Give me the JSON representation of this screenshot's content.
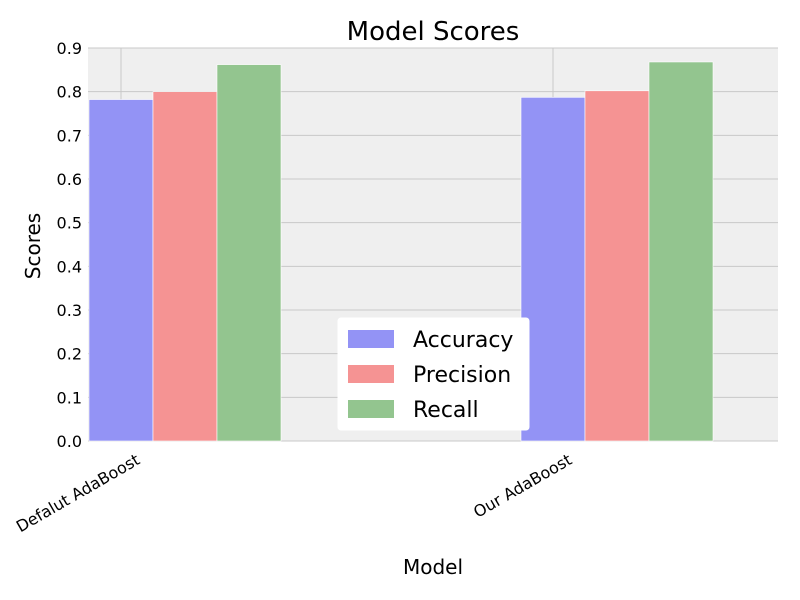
{
  "chart_data": {
    "type": "bar",
    "title": "Model Scores",
    "xlabel": "Model",
    "ylabel": "Scores",
    "categories": [
      "Defalut AdaBoost",
      "Our AdaBoost"
    ],
    "series": [
      {
        "name": "Accuracy",
        "values": [
          0.782,
          0.787
        ],
        "color": "#9393f5"
      },
      {
        "name": "Precision",
        "values": [
          0.8,
          0.802
        ],
        "color": "#f59393"
      },
      {
        "name": "Recall",
        "values": [
          0.862,
          0.868
        ],
        "color": "#93c58f"
      }
    ],
    "ylim": [
      0.0,
      0.9
    ],
    "yticks": [
      "0.0",
      "0.1",
      "0.2",
      "0.3",
      "0.4",
      "0.5",
      "0.6",
      "0.7",
      "0.8",
      "0.9"
    ],
    "grid": true,
    "legend_position": "lower-center",
    "background": "#efefef"
  }
}
